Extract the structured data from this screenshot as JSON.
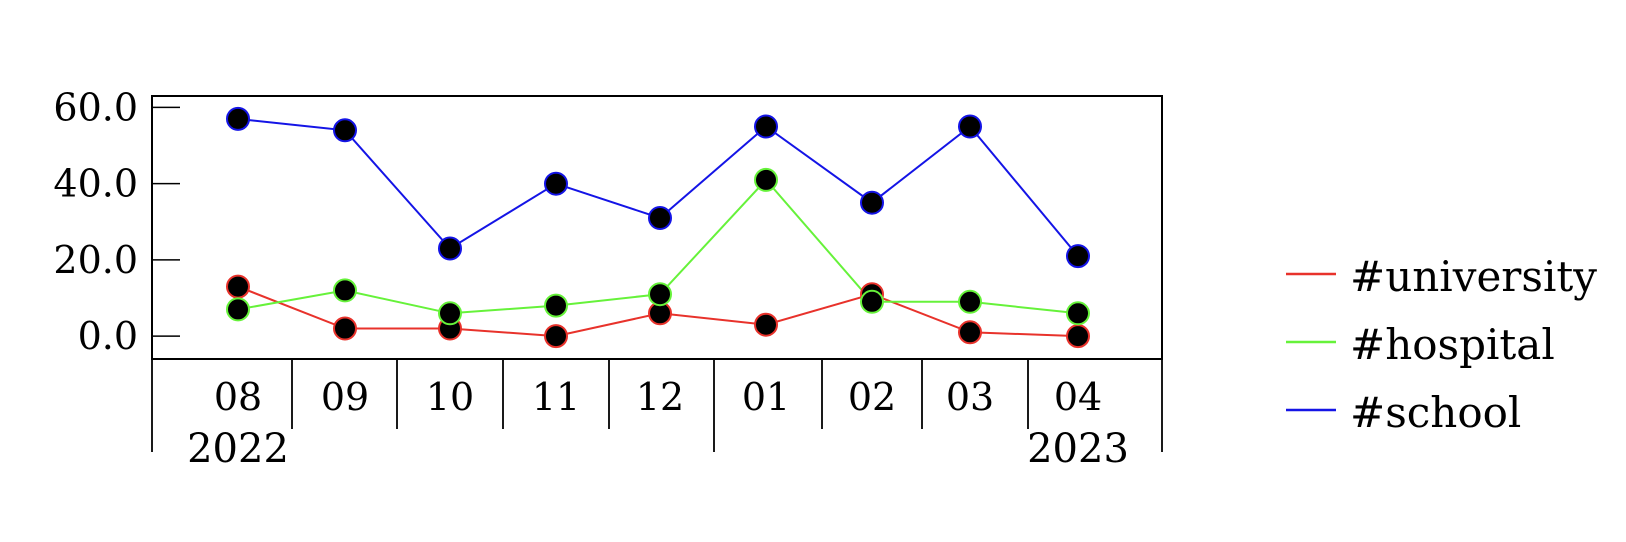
{
  "chart_data": {
    "type": "line",
    "categories": [
      "08",
      "09",
      "10",
      "11",
      "12",
      "01",
      "02",
      "03",
      "04"
    ],
    "years": [
      {
        "label": "2022",
        "start_index": 0,
        "end_index": 4
      },
      {
        "label": "2023",
        "start_index": 5,
        "end_index": 8
      }
    ],
    "ylim": [
      -6,
      63
    ],
    "yticks": [
      {
        "value": 0,
        "label": "0.0"
      },
      {
        "value": 20,
        "label": "20.0"
      },
      {
        "value": 40,
        "label": "40.0"
      },
      {
        "value": 60,
        "label": "60.0"
      }
    ],
    "series": [
      {
        "name": "#university",
        "color": "#e8322b",
        "values": [
          13,
          2,
          2,
          0,
          6,
          3,
          11,
          1,
          0
        ]
      },
      {
        "name": "#hospital",
        "color": "#66f23a",
        "values": [
          7,
          12,
          6,
          8,
          11,
          41,
          9,
          9,
          6
        ]
      },
      {
        "name": "#school",
        "color": "#1414e6",
        "values": [
          57,
          54,
          23,
          40,
          31,
          55,
          35,
          55,
          21
        ]
      }
    ],
    "marker_fill": "#000000",
    "legend_position": "right",
    "grid": false
  }
}
